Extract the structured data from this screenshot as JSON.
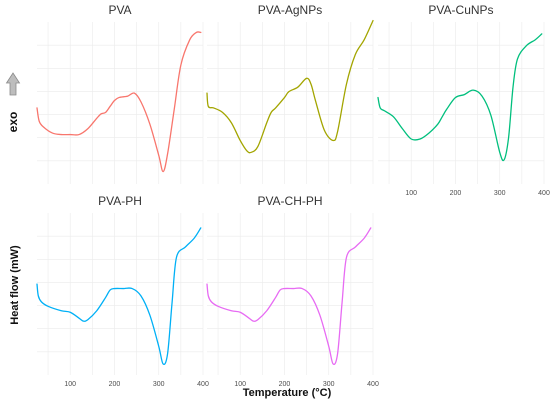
{
  "figure": {
    "ylabel": "Heat flow (mW)",
    "xlabel": "Temperature (°C)",
    "exo_label": "exo",
    "exo_icon": "up-arrow-icon"
  },
  "chart_data": [
    {
      "type": "line",
      "title": "PVA",
      "color": "#F8766D",
      "xlim": [
        25,
        400
      ],
      "x_ticks": [
        100,
        200,
        300,
        400
      ],
      "x": [
        25,
        30,
        40,
        60,
        80,
        100,
        120,
        140,
        160,
        170,
        180,
        190,
        200,
        210,
        230,
        245,
        260,
        280,
        300,
        310,
        320,
        335,
        350,
        370,
        385,
        395
      ],
      "y": [
        0.46,
        0.37,
        0.33,
        0.29,
        0.28,
        0.28,
        0.28,
        0.32,
        0.39,
        0.42,
        0.43,
        0.47,
        0.51,
        0.53,
        0.54,
        0.56,
        0.5,
        0.35,
        0.14,
        0.03,
        0.15,
        0.45,
        0.75,
        0.92,
        0.97,
        0.97
      ]
    },
    {
      "type": "line",
      "title": "PVA-AgNPs",
      "color": "#A3A500",
      "xlim": [
        25,
        400
      ],
      "x_ticks": [
        100,
        200,
        300,
        400
      ],
      "x": [
        25,
        28,
        40,
        60,
        80,
        100,
        115,
        125,
        140,
        160,
        170,
        180,
        200,
        210,
        230,
        250,
        260,
        270,
        290,
        310,
        320,
        340,
        360,
        380,
        400
      ],
      "y": [
        0.56,
        0.47,
        0.46,
        0.43,
        0.36,
        0.24,
        0.17,
        0.16,
        0.2,
        0.36,
        0.43,
        0.46,
        0.53,
        0.57,
        0.6,
        0.66,
        0.62,
        0.51,
        0.31,
        0.24,
        0.3,
        0.62,
        0.82,
        0.92,
        1.05
      ]
    },
    {
      "type": "line",
      "title": "PVA-CuNPs",
      "color": "#00BF7D",
      "xlim": [
        25,
        400
      ],
      "x_ticks": [
        100,
        200,
        300,
        400
      ],
      "x": [
        25,
        30,
        40,
        60,
        80,
        100,
        120,
        140,
        160,
        170,
        180,
        200,
        220,
        240,
        260,
        280,
        300,
        310,
        320,
        330,
        340,
        360,
        380,
        395
      ],
      "y": [
        0.53,
        0.46,
        0.44,
        0.4,
        0.32,
        0.25,
        0.25,
        0.29,
        0.35,
        0.4,
        0.45,
        0.53,
        0.55,
        0.58,
        0.54,
        0.41,
        0.16,
        0.11,
        0.26,
        0.6,
        0.79,
        0.88,
        0.92,
        0.96
      ]
    },
    {
      "type": "line",
      "title": "PVA-PH",
      "color": "#00B0F6",
      "xlim": [
        25,
        400
      ],
      "x_ticks": [
        100,
        200,
        300,
        400
      ],
      "x": [
        25,
        28,
        35,
        50,
        80,
        100,
        120,
        130,
        140,
        160,
        180,
        190,
        200,
        220,
        240,
        260,
        280,
        300,
        310,
        320,
        330,
        340,
        360,
        380,
        395
      ],
      "y": [
        0.56,
        0.48,
        0.44,
        0.41,
        0.38,
        0.37,
        0.33,
        0.31,
        0.32,
        0.38,
        0.47,
        0.52,
        0.53,
        0.53,
        0.53,
        0.48,
        0.35,
        0.14,
        0.02,
        0.09,
        0.43,
        0.74,
        0.81,
        0.87,
        0.94
      ]
    },
    {
      "type": "line",
      "title": "PVA-CH-PH",
      "color": "#E76BF3",
      "xlim": [
        25,
        400
      ],
      "x_ticks": [
        100,
        200,
        300,
        400
      ],
      "x": [
        25,
        28,
        35,
        50,
        80,
        100,
        120,
        130,
        140,
        160,
        180,
        190,
        200,
        220,
        240,
        260,
        280,
        300,
        310,
        320,
        330,
        340,
        360,
        380,
        395
      ],
      "y": [
        0.56,
        0.48,
        0.44,
        0.41,
        0.38,
        0.37,
        0.33,
        0.31,
        0.32,
        0.38,
        0.47,
        0.52,
        0.53,
        0.53,
        0.53,
        0.48,
        0.35,
        0.14,
        0.02,
        0.09,
        0.43,
        0.74,
        0.81,
        0.87,
        0.94
      ]
    }
  ]
}
